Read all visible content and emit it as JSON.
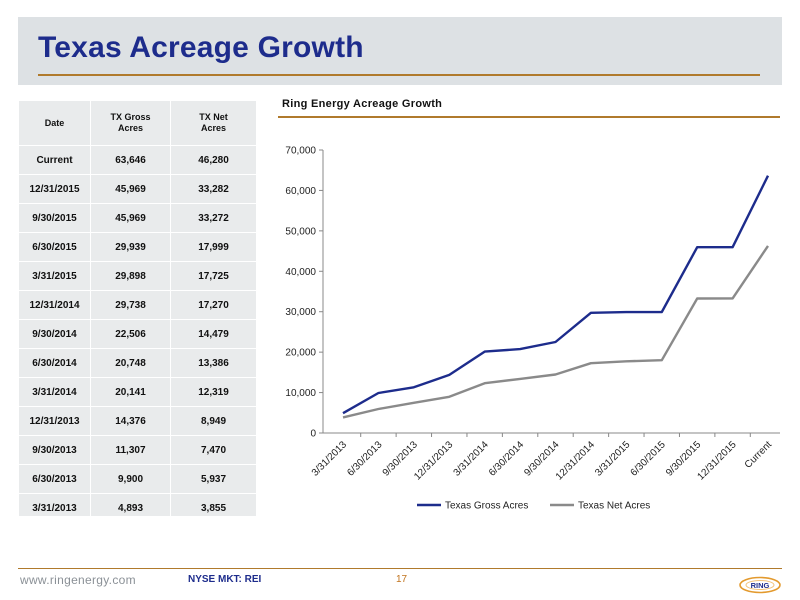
{
  "slide": {
    "title": "Texas Acreage Growth",
    "page_number": "17"
  },
  "table": {
    "headers": {
      "date": "Date",
      "gross_line1": "TX Gross",
      "gross_line2": "Acres",
      "net_line1": "TX Net",
      "net_line2": "Acres"
    },
    "rows": [
      {
        "date": "Current",
        "gross": "63,646",
        "net": "46,280"
      },
      {
        "date": "12/31/2015",
        "gross": "45,969",
        "net": "33,282"
      },
      {
        "date": "9/30/2015",
        "gross": "45,969",
        "net": "33,272"
      },
      {
        "date": "6/30/2015",
        "gross": "29,939",
        "net": "17,999"
      },
      {
        "date": "3/31/2015",
        "gross": "29,898",
        "net": "17,725"
      },
      {
        "date": "12/31/2014",
        "gross": "29,738",
        "net": "17,270"
      },
      {
        "date": "9/30/2014",
        "gross": "22,506",
        "net": "14,479"
      },
      {
        "date": "6/30/2014",
        "gross": "20,748",
        "net": "13,386"
      },
      {
        "date": "3/31/2014",
        "gross": "20,141",
        "net": "12,319"
      },
      {
        "date": "12/31/2013",
        "gross": "14,376",
        "net": "8,949"
      },
      {
        "date": "9/30/2013",
        "gross": "11,307",
        "net": "7,470"
      },
      {
        "date": "6/30/2013",
        "gross": "9,900",
        "net": "5,937"
      },
      {
        "date": "3/31/2013",
        "gross": "4,893",
        "net": "3,855"
      }
    ]
  },
  "chart_data": {
    "type": "line",
    "title": "Ring Energy Acreage Growth",
    "xlabel": "",
    "ylabel": "",
    "categories": [
      "3/31/2013",
      "6/30/2013",
      "9/30/2013",
      "12/31/2013",
      "3/31/2014",
      "6/30/2014",
      "9/30/2014",
      "12/31/2014",
      "3/31/2015",
      "6/30/2015",
      "9/30/2015",
      "12/31/2015",
      "Current"
    ],
    "series": [
      {
        "name": "Texas Gross Acres",
        "color": "#1d2c8c",
        "values": [
          4893,
          9900,
          11307,
          14376,
          20141,
          20748,
          22506,
          29738,
          29898,
          29939,
          45969,
          45969,
          63646
        ]
      },
      {
        "name": "Texas Net Acres",
        "color": "#8a8a8a",
        "values": [
          3855,
          5937,
          7470,
          8949,
          12319,
          13386,
          14479,
          17270,
          17725,
          17999,
          33272,
          33282,
          46280
        ]
      }
    ],
    "ylim": [
      0,
      70000
    ],
    "yticks": [
      0,
      10000,
      20000,
      30000,
      40000,
      50000,
      60000,
      70000
    ],
    "ytick_labels": [
      "0",
      "10,000",
      "20,000",
      "30,000",
      "40,000",
      "50,000",
      "60,000",
      "70,000"
    ],
    "grid": false,
    "legend_position": "bottom"
  },
  "footer": {
    "url": "www.ringenergy.com",
    "ticker": "NYSE MKT: REI",
    "logo_text": "RING"
  },
  "colors": {
    "title_blue": "#1d2c8c",
    "accent_gold": "#b07a2c",
    "gross_series": "#1d2c8c",
    "net_series": "#8a8a8a"
  }
}
